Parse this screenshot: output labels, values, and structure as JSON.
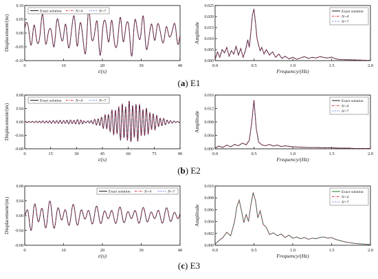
{
  "captions": [
    {
      "letter": "a",
      "name": "E1"
    },
    {
      "letter": "b",
      "name": "E2"
    },
    {
      "letter": "c",
      "name": "E3"
    }
  ],
  "colors": {
    "exact": "#1a1a1a",
    "n4": "#e0303a",
    "n7": "#3b4bd8",
    "exact_freq": "#1a7a2a"
  },
  "chart_data": [
    {
      "id": "E1-time",
      "type": "line",
      "xlabel": "t/(s)",
      "ylabel": "Displacement/(m)",
      "xlim": [
        0,
        40
      ],
      "ylim": [
        -0.1,
        0.1
      ],
      "xticks": [
        0,
        10,
        20,
        30,
        40
      ],
      "yticks": [
        -0.1,
        -0.05,
        0.0,
        0.05,
        0.1
      ],
      "yticklabels": [
        "-0.10",
        "-0.05",
        "0.00",
        "0.05",
        "0.10"
      ],
      "legend": [
        "Exact solution",
        "N=4",
        "N=7"
      ],
      "legend_position": "top-left",
      "signal": {
        "duration": 40,
        "freqs": [
          0.5,
          0.24,
          0.85
        ],
        "amps": [
          0.052,
          0.022,
          0.01
        ],
        "envelope": "growing",
        "peak": 0.09
      }
    },
    {
      "id": "E1-freq",
      "type": "line",
      "xlabel": "Frequency/(Hz)",
      "ylabel": "Amplitude",
      "xlim": [
        0,
        2
      ],
      "ylim": [
        0,
        0.025
      ],
      "xticks": [
        0,
        0.5,
        1.0,
        1.5,
        2.0
      ],
      "xticklabels": [
        "0.0",
        "0.5",
        "1.0",
        "1.5",
        "2.0"
      ],
      "yticks": [
        0,
        0.005,
        0.01,
        0.015,
        0.02,
        0.025
      ],
      "yticklabels": [
        "0.000",
        "0.005",
        "0.010",
        "0.015",
        "0.020",
        "0.025"
      ],
      "legend": [
        "Exact solution",
        "N=4",
        "N=7"
      ],
      "legend_position": "top-right",
      "x": [
        0,
        0.03,
        0.06,
        0.09,
        0.12,
        0.15,
        0.18,
        0.21,
        0.24,
        0.27,
        0.3,
        0.33,
        0.36,
        0.39,
        0.42,
        0.44,
        0.46,
        0.48,
        0.5,
        0.52,
        0.54,
        0.56,
        0.58,
        0.6,
        0.63,
        0.66,
        0.7,
        0.74,
        0.78,
        0.82,
        0.86,
        0.9,
        0.95,
        1.0,
        1.05,
        1.1,
        1.15,
        1.2,
        1.25,
        1.3,
        1.35,
        1.4,
        1.45,
        1.5,
        1.55,
        1.6,
        1.7,
        1.8,
        1.9,
        2.0
      ],
      "y": [
        0.0005,
        0.004,
        0.0015,
        0.005,
        0.0035,
        0.006,
        0.002,
        0.0045,
        0.003,
        0.0065,
        0.0025,
        0.0055,
        0.0015,
        0.0045,
        0.0095,
        0.006,
        0.013,
        0.0205,
        0.0235,
        0.017,
        0.01,
        0.007,
        0.0045,
        0.006,
        0.003,
        0.005,
        0.0025,
        0.004,
        0.0015,
        0.003,
        0.001,
        0.002,
        0.0008,
        0.0015,
        0.0006,
        0.0012,
        0.0018,
        0.001,
        0.0015,
        0.0012,
        0.0018,
        0.0014,
        0.0012,
        0.0016,
        0.0008,
        0.0005,
        0.0004,
        0.0003,
        0.0002,
        0.0001
      ]
    },
    {
      "id": "E2-time",
      "type": "line",
      "xlabel": "t/(s)",
      "ylabel": "Displacement/(m)",
      "xlim": [
        0,
        90
      ],
      "ylim": [
        -0.08,
        0.08
      ],
      "xticks": [
        0,
        15,
        30,
        45,
        60,
        75,
        90
      ],
      "yticks": [
        -0.08,
        -0.04,
        0.0,
        0.04,
        0.08
      ],
      "yticklabels": [
        "-0.08",
        "-0.04",
        "0.00",
        "0.04",
        "0.08"
      ],
      "legend": [
        "Exact solution",
        "N=4",
        "N=7"
      ],
      "legend_position": "top-left",
      "signal": {
        "duration": 90,
        "freqs": [
          0.5,
          0.3
        ],
        "amps": [
          0.055,
          0.008
        ],
        "envelope": "bell",
        "peak": 0.062
      }
    },
    {
      "id": "E2-freq",
      "type": "line",
      "xlabel": "Frequency/(Hz)",
      "ylabel": "Amplitude",
      "xlim": [
        0,
        2
      ],
      "ylim": [
        0,
        0.016
      ],
      "xticks": [
        0,
        0.5,
        1.0,
        1.5,
        2.0
      ],
      "xticklabels": [
        "0.0",
        "0.5",
        "1.0",
        "1.5",
        "2.0"
      ],
      "yticks": [
        0,
        0.004,
        0.008,
        0.012,
        0.016
      ],
      "yticklabels": [
        "0.000",
        "0.004",
        "0.008",
        "0.012",
        "0.016"
      ],
      "legend": [
        "Exact solution",
        "N=4",
        "N=7"
      ],
      "legend_position": "top-right",
      "x": [
        0,
        0.05,
        0.1,
        0.15,
        0.2,
        0.25,
        0.3,
        0.35,
        0.4,
        0.44,
        0.47,
        0.5,
        0.53,
        0.56,
        0.6,
        0.65,
        0.7,
        0.75,
        0.8,
        0.85,
        0.9,
        1.0,
        1.1,
        1.2,
        1.3,
        1.4,
        1.5,
        1.6,
        1.7,
        1.8,
        1.9,
        2.0
      ],
      "y": [
        0.0002,
        0.0008,
        0.0004,
        0.0011,
        0.0006,
        0.0013,
        0.0009,
        0.0017,
        0.0012,
        0.0025,
        0.0075,
        0.0145,
        0.006,
        0.002,
        0.0012,
        0.0009,
        0.0013,
        0.0008,
        0.0011,
        0.0007,
        0.0009,
        0.0006,
        0.0005,
        0.0004,
        0.0004,
        0.0003,
        0.0003,
        0.0002,
        0.0002,
        0.0001,
        0.0001,
        0.0001
      ]
    },
    {
      "id": "E3-time",
      "type": "line",
      "xlabel": "t/(s)",
      "ylabel": "Displacement/(m)",
      "xlim": [
        0,
        40
      ],
      "ylim": [
        -0.08,
        0.08
      ],
      "xticks": [
        0,
        10,
        20,
        30,
        40
      ],
      "yticks": [
        -0.08,
        -0.04,
        0.0,
        0.04,
        0.08
      ],
      "yticklabels": [
        "-0.08",
        "-0.04",
        "0.00",
        "0.04",
        "0.08"
      ],
      "legend": [
        "Exact solution",
        "N=4",
        "N=7"
      ],
      "legend_position": "top-right",
      "signal": {
        "duration": 40,
        "freqs": [
          0.5,
          0.33
        ],
        "amps": [
          0.04,
          0.02
        ],
        "envelope": "decay",
        "peak": 0.062
      }
    },
    {
      "id": "E3-freq",
      "type": "line",
      "xlabel": "Frequency/(Hz)",
      "ylabel": "Amplitude",
      "xlim": [
        0,
        2
      ],
      "ylim": [
        0,
        0.01
      ],
      "xticks": [
        0,
        0.5,
        1.0,
        1.5,
        2.0
      ],
      "xticklabels": [
        "0.0",
        "0.5",
        "1.0",
        "1.5",
        "2.0"
      ],
      "yticks": [
        0,
        0.002,
        0.004,
        0.006,
        0.008,
        0.01
      ],
      "yticklabels": [
        "0.000",
        "0.002",
        "0.004",
        "0.006",
        "0.008",
        "0.010"
      ],
      "legend": [
        "Exact solution",
        "N=4",
        "N=7"
      ],
      "legend_position": "top-right",
      "x": [
        0,
        0.05,
        0.1,
        0.15,
        0.2,
        0.25,
        0.28,
        0.31,
        0.34,
        0.37,
        0.4,
        0.43,
        0.46,
        0.49,
        0.52,
        0.55,
        0.58,
        0.62,
        0.66,
        0.7,
        0.75,
        0.8,
        0.85,
        0.9,
        0.95,
        1.0,
        1.05,
        1.1,
        1.15,
        1.2,
        1.25,
        1.3,
        1.35,
        1.4,
        1.45,
        1.5,
        1.55,
        1.6,
        1.7,
        1.8,
        1.9,
        2.0
      ],
      "y": [
        0.0002,
        0.0008,
        0.0013,
        0.0022,
        0.0016,
        0.004,
        0.0065,
        0.0076,
        0.0058,
        0.0038,
        0.0052,
        0.004,
        0.0068,
        0.0089,
        0.0075,
        0.0046,
        0.0058,
        0.0035,
        0.003,
        0.0018,
        0.0021,
        0.0016,
        0.0019,
        0.0013,
        0.0017,
        0.0012,
        0.0014,
        0.0011,
        0.0013,
        0.001,
        0.0012,
        0.0011,
        0.0013,
        0.0014,
        0.0012,
        0.0013,
        0.001,
        0.0008,
        0.0005,
        0.0003,
        0.0002,
        0.0001
      ]
    }
  ]
}
